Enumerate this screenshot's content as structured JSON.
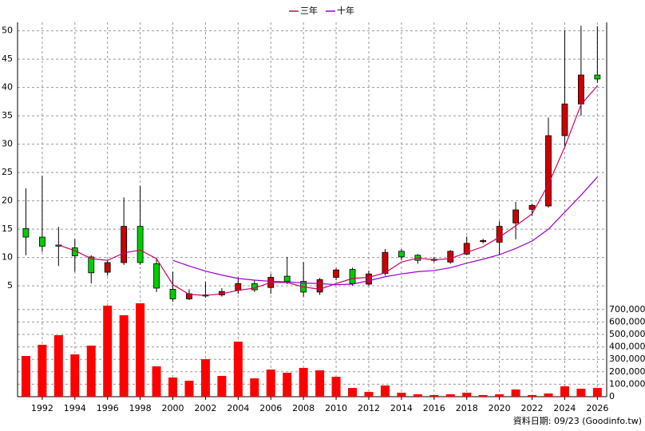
{
  "chart_data": {
    "type": "candlestick",
    "x": [
      1991,
      1992,
      1993,
      1994,
      1995,
      1996,
      1997,
      1998,
      1999,
      2000,
      2001,
      2002,
      2003,
      2004,
      2005,
      2006,
      2007,
      2008,
      2009,
      2010,
      2011,
      2012,
      2013,
      2014,
      2015,
      2016,
      2017,
      2018,
      2019,
      2020,
      2021,
      2022,
      2023,
      2024,
      2025,
      2026
    ],
    "open": [
      15.1,
      13.6,
      12.2,
      11.7,
      10.1,
      7.4,
      9.1,
      15.5,
      8.9,
      4.4,
      2.7,
      3.2,
      3.4,
      4.2,
      5.4,
      4.7,
      6.7,
      5.8,
      3.9,
      6.5,
      7.9,
      5.3,
      7.2,
      11.1,
      10.4,
      9.5,
      9.2,
      10.6,
      12.8,
      12.7,
      16.1,
      18.5,
      19.1,
      31.5,
      37.1,
      42.2
    ],
    "high": [
      22.2,
      24.4,
      15.4,
      13.2,
      10.4,
      9.6,
      20.6,
      22.6,
      9.9,
      7.5,
      4.4,
      5.7,
      4.6,
      6.5,
      6.0,
      7.1,
      10.1,
      9.2,
      6.4,
      8.1,
      8.2,
      7.7,
      11.5,
      11.5,
      10.6,
      10.1,
      11.3,
      13.7,
      13.3,
      16.4,
      19.8,
      19.5,
      34.7,
      50.1,
      50.9,
      50.8
    ],
    "low": [
      10.4,
      11.0,
      8.5,
      7.5,
      5.4,
      6.8,
      8.7,
      8.7,
      3.9,
      2.2,
      2.5,
      2.9,
      3.1,
      3.6,
      3.9,
      3.6,
      5.3,
      3.1,
      3.4,
      6.0,
      5.0,
      5.0,
      6.8,
      9.5,
      8.9,
      9.2,
      8.9,
      10.4,
      12.5,
      10.4,
      13.2,
      17.4,
      18.8,
      29.6,
      35.0,
      40.8
    ],
    "close": [
      13.6,
      12.0,
      12.0,
      10.3,
      7.3,
      9.1,
      15.5,
      9.1,
      4.6,
      2.7,
      3.6,
      3.4,
      4.0,
      5.4,
      4.3,
      6.5,
      5.8,
      3.9,
      6.1,
      7.8,
      5.4,
      7.1,
      10.9,
      10.1,
      9.5,
      9.7,
      11.1,
      12.5,
      13.0,
      15.5,
      18.4,
      19.2,
      31.5,
      37.1,
      42.2,
      41.5
    ],
    "up_color": "#cc0000",
    "down_color": "#00cc00",
    "series": [
      {
        "name": "三年",
        "color": "#cc0066",
        "values": [
          null,
          null,
          12.2,
          11.2,
          9.8,
          9.5,
          10.8,
          11.3,
          9.8,
          5.2,
          3.5,
          3.3,
          3.6,
          4.2,
          4.6,
          5.6,
          5.6,
          4.8,
          4.4,
          5.4,
          6.3,
          6.5,
          7.3,
          9.2,
          9.9,
          9.6,
          9.8,
          10.9,
          11.9,
          13.6,
          15.6,
          17.7,
          22.9,
          29.5,
          37.0,
          40.3
        ]
      },
      {
        "name": "十年",
        "color": "#9900cc",
        "values": [
          null,
          null,
          null,
          null,
          null,
          null,
          null,
          null,
          null,
          9.5,
          8.5,
          7.6,
          6.9,
          6.3,
          6.0,
          5.8,
          5.7,
          5.5,
          5.4,
          5.2,
          5.3,
          5.9,
          6.6,
          7.1,
          7.5,
          7.7,
          8.2,
          9.0,
          9.7,
          10.5,
          11.6,
          12.9,
          15.0,
          18.0,
          21.0,
          24.2
        ]
      }
    ],
    "xlim": [
      1990.49,
      2026.57
    ],
    "xticks": [
      1992,
      1994,
      1996,
      1998,
      2000,
      2002,
      2004,
      2006,
      2008,
      2010,
      2012,
      2014,
      2016,
      2018,
      2020,
      2022,
      2024,
      2026
    ],
    "ylim": [
      2.2,
      51.5
    ],
    "yticks": [
      5,
      10,
      15,
      20,
      25,
      30,
      35,
      40,
      45,
      50
    ],
    "grid": true,
    "volume": {
      "values": [
        327000,
        417000,
        494000,
        340000,
        410000,
        731000,
        654000,
        750000,
        244000,
        154000,
        128000,
        301000,
        167000,
        442000,
        147000,
        218000,
        192000,
        231000,
        212000,
        160000,
        70000,
        38000,
        90000,
        32000,
        19000,
        13000,
        19000,
        32000,
        13000,
        19000,
        58000,
        13000,
        26000,
        83000,
        64000,
        70000
      ],
      "color": "#ff0000",
      "ylim": [
        0,
        750000
      ],
      "yticks": [
        0,
        {
          "value": 100000,
          "label": "100,000"
        },
        {
          "value": 200000,
          "label": "200,000"
        },
        {
          "value": 300000,
          "label": "300,000"
        },
        {
          "value": 400000,
          "label": "400,000"
        },
        {
          "value": 500000,
          "label": "500,000"
        },
        {
          "value": 600000,
          "label": "600,000"
        },
        {
          "value": 700000,
          "label": "700,000"
        }
      ]
    },
    "footnote": "資料日期: 09/23 (Goodinfo.tw)"
  }
}
